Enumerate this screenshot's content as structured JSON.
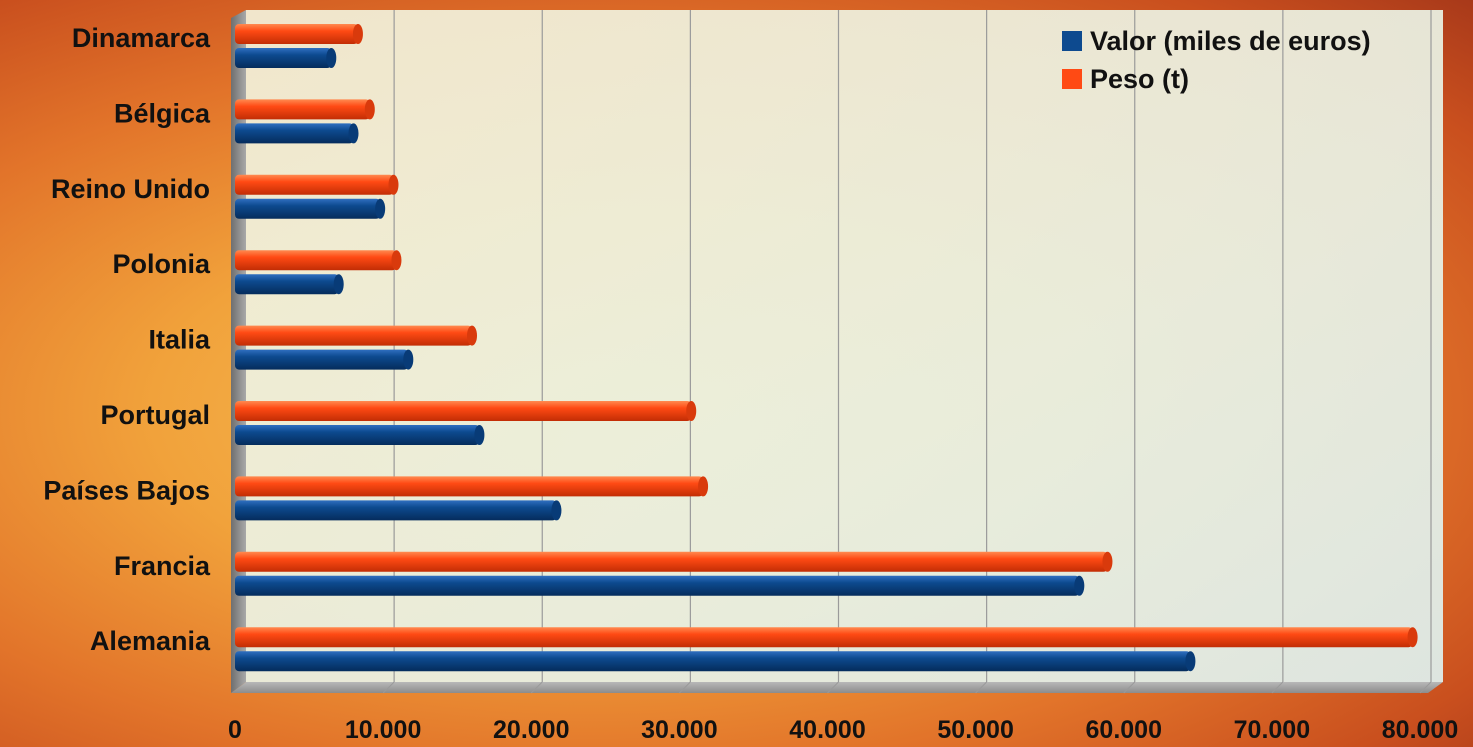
{
  "chart_data": {
    "type": "bar",
    "orientation": "horizontal",
    "title": "",
    "xlabel": "",
    "ylabel": "",
    "categories": [
      "Dinamarca",
      "Bélgica",
      "Reino Unido",
      "Polonia",
      "Italia",
      "Portugal",
      "Países Bajos",
      "Francia",
      "Alemania"
    ],
    "series": [
      {
        "name": "Valor (miles de euros)",
        "color": "#0d4a8f",
        "values": [
          6500,
          8000,
          9800,
          7000,
          11700,
          16500,
          21700,
          57000,
          64500
        ]
      },
      {
        "name": "Peso (t)",
        "color": "#ff4a14",
        "values": [
          8300,
          9100,
          10700,
          10900,
          16000,
          30800,
          31600,
          58900,
          79500
        ]
      }
    ],
    "xlim": [
      0,
      80000
    ],
    "xticks": [
      0,
      10000,
      20000,
      30000,
      40000,
      50000,
      60000,
      70000,
      80000
    ],
    "tick_labels": [
      "0",
      "10.000",
      "20.000",
      "30.000",
      "40.000",
      "50.000",
      "60.000",
      "70.000",
      "80.000"
    ],
    "grid": true,
    "legend_position": "top-right"
  }
}
